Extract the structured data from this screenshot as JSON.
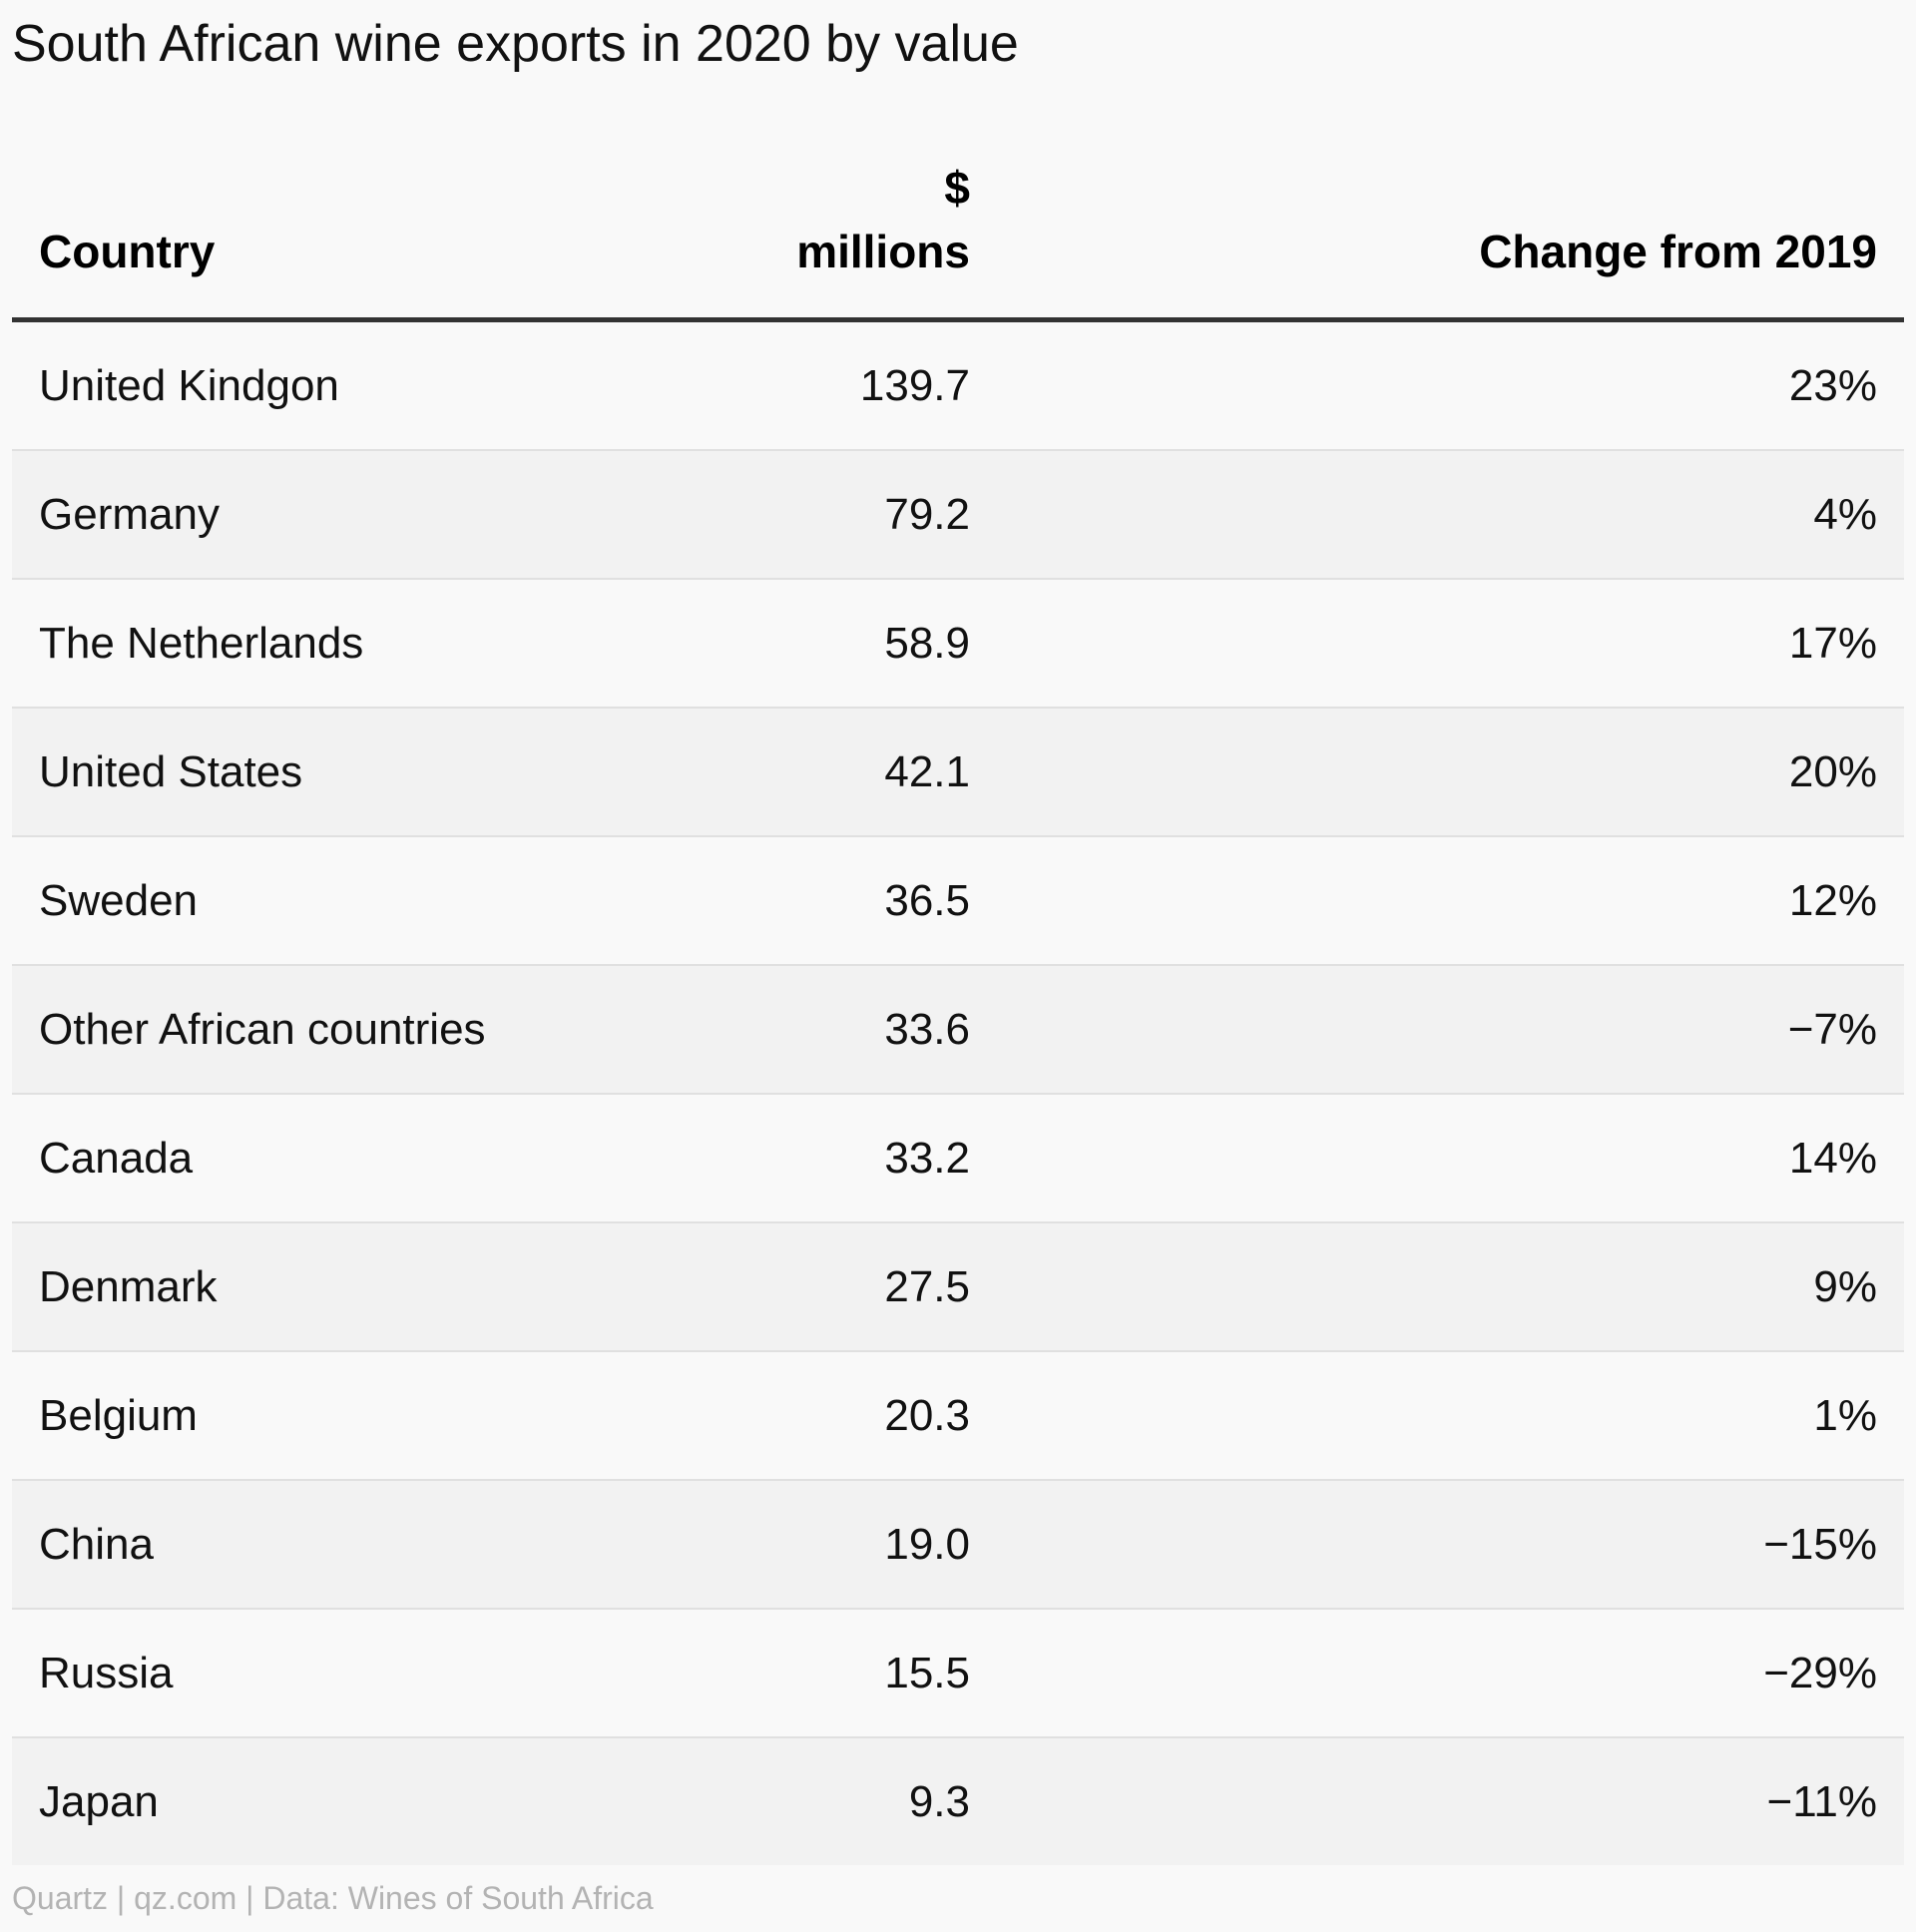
{
  "title": "South African wine exports in 2020 by value",
  "footer": "Quartz | qz.com | Data: Wines of South Africa",
  "colors": {
    "background": "#f9f9f9",
    "row_alt": "#f2f2f2",
    "header_rule": "#333333",
    "footer_text": "#b3b3b3"
  },
  "chart_data": {
    "type": "table",
    "title": "South African wine exports in 2020 by value",
    "columns": [
      "Country",
      "$ millions",
      "Change from 2019"
    ],
    "header": {
      "country": "Country",
      "value_line1": "$",
      "value_line2": "millions",
      "change": "Change from 2019"
    },
    "rows": [
      {
        "country": "United Kindgon",
        "value": "139.7",
        "change": "23%"
      },
      {
        "country": "Germany",
        "value": "79.2",
        "change": "4%"
      },
      {
        "country": "The Netherlands",
        "value": "58.9",
        "change": "17%"
      },
      {
        "country": "United States",
        "value": "42.1",
        "change": "20%"
      },
      {
        "country": "Sweden",
        "value": "36.5",
        "change": "12%"
      },
      {
        "country": "Other African countries",
        "value": "33.6",
        "change": "−7%"
      },
      {
        "country": "Canada",
        "value": "33.2",
        "change": "14%"
      },
      {
        "country": "Denmark",
        "value": "27.5",
        "change": "9%"
      },
      {
        "country": "Belgium",
        "value": "20.3",
        "change": "1%"
      },
      {
        "country": "China",
        "value": "19.0",
        "change": "−15%"
      },
      {
        "country": "Russia",
        "value": "15.5",
        "change": "−29%"
      },
      {
        "country": "Japan",
        "value": "9.3",
        "change": "−11%"
      }
    ]
  }
}
